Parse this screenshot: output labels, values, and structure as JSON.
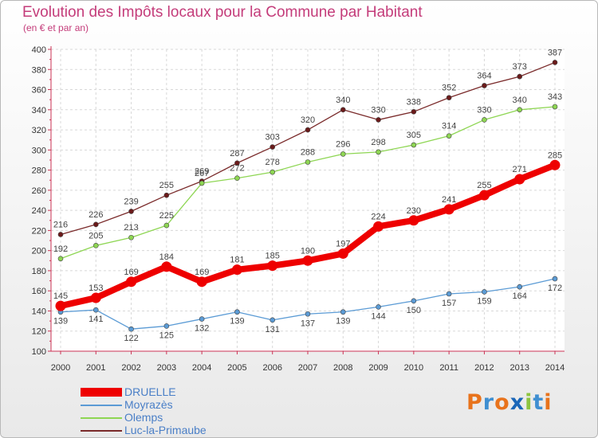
{
  "header": {
    "title": "Evolution des Impôts locaux pour la Commune par Habitant",
    "subtitle": "(en € et par an)"
  },
  "colors": {
    "title": "#c43c7a",
    "legend_text": "#4a7fc7"
  },
  "logo": {
    "text": "Proxiti"
  },
  "chart_data": {
    "type": "line",
    "title": "Evolution des Impôts locaux pour la Commune par Habitant",
    "subtitle": "(en € et par an)",
    "xlabel": "",
    "ylabel": "",
    "x": [
      "2000",
      "2001",
      "2002",
      "2003",
      "2004",
      "2005",
      "2006",
      "2007",
      "2008",
      "2009",
      "2010",
      "2011",
      "2012",
      "2013",
      "2014"
    ],
    "ylim": [
      100,
      400
    ],
    "yticks": [
      100,
      120,
      140,
      160,
      180,
      200,
      220,
      240,
      260,
      280,
      300,
      320,
      340,
      360,
      380,
      400
    ],
    "grid": true,
    "legend_position": "bottom-left",
    "series": [
      {
        "name": "DRUELLE",
        "color": "#ee0000",
        "values": [
          145,
          153,
          169,
          184,
          169,
          181,
          185,
          190,
          197,
          224,
          230,
          241,
          255,
          271,
          285
        ]
      },
      {
        "name": "Moyrazès",
        "color": "#5b9bd5",
        "values": [
          139,
          141,
          122,
          125,
          132,
          139,
          131,
          137,
          139,
          144,
          150,
          157,
          159,
          164,
          172
        ]
      },
      {
        "name": "Olemps",
        "color": "#8ed653",
        "values": [
          192,
          205,
          213,
          225,
          267,
          272,
          278,
          288,
          296,
          298,
          305,
          314,
          330,
          340,
          343
        ]
      },
      {
        "name": "Luc-la-Primaube",
        "color": "#7a2a2a",
        "values": [
          216,
          226,
          239,
          255,
          269,
          287,
          303,
          320,
          340,
          330,
          338,
          352,
          364,
          373,
          387
        ]
      }
    ]
  }
}
